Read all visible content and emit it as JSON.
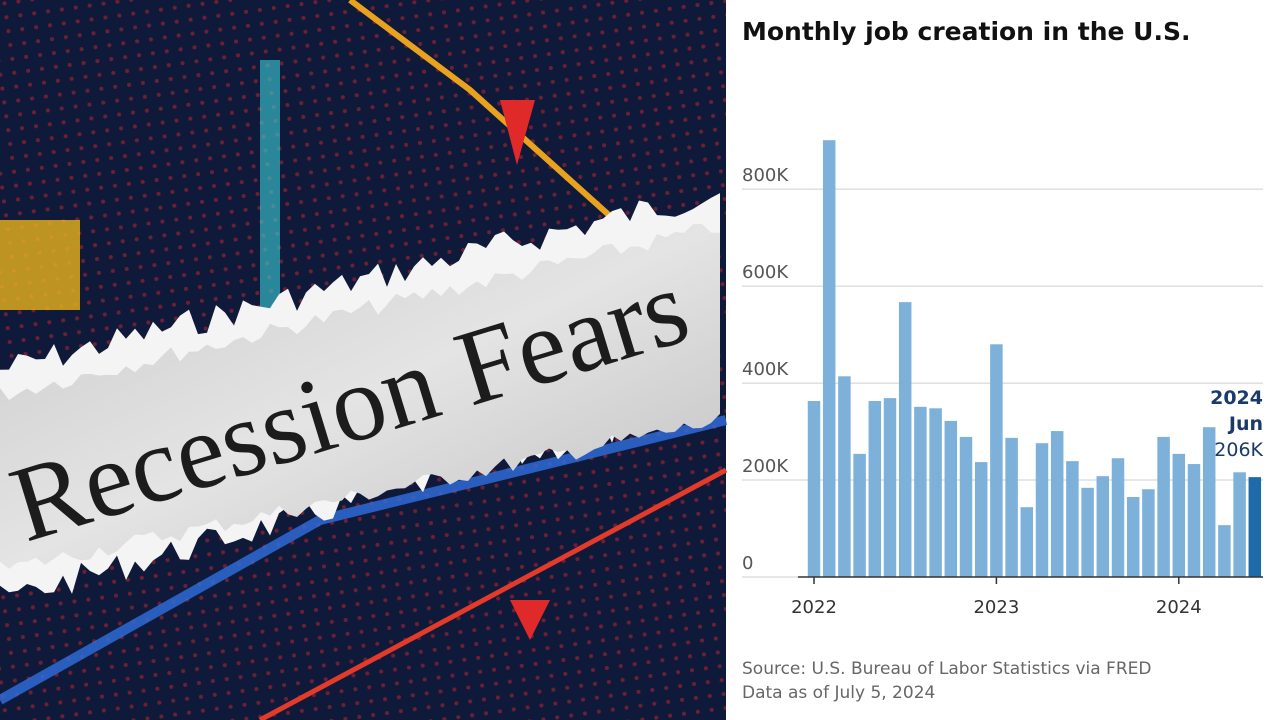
{
  "photo": {
    "headline": "Recession Fears"
  },
  "chart_data": {
    "type": "bar",
    "title": "Monthly job creation in the U.S.",
    "categories": [
      "2022",
      null,
      null,
      null,
      null,
      null,
      null,
      null,
      null,
      null,
      null,
      null,
      "2023",
      null,
      null,
      null,
      null,
      null,
      null,
      null,
      null,
      null,
      null,
      null,
      "2024",
      null,
      null,
      null,
      null,
      null
    ],
    "values": [
      363,
      901,
      414,
      254,
      363,
      369,
      567,
      351,
      348,
      322,
      289,
      237,
      480,
      287,
      144,
      276,
      301,
      239,
      184,
      208,
      245,
      165,
      181,
      289,
      254,
      233,
      309,
      107,
      216,
      206
    ],
    "value_labels": [
      null,
      null,
      null,
      null,
      null,
      null,
      null,
      null,
      null,
      null,
      null,
      null,
      null,
      null,
      null,
      null,
      null,
      null,
      null,
      null,
      null,
      null,
      null,
      null,
      null,
      null,
      null,
      null,
      null,
      "206K"
    ],
    "colors": [
      "#7db1da",
      "#7db1da",
      "#7db1da",
      "#7db1da",
      "#7db1da",
      "#7db1da",
      "#7db1da",
      "#7db1da",
      "#7db1da",
      "#7db1da",
      "#7db1da",
      "#7db1da",
      "#7db1da",
      "#7db1da",
      "#7db1da",
      "#7db1da",
      "#7db1da",
      "#7db1da",
      "#7db1da",
      "#7db1da",
      "#7db1da",
      "#7db1da",
      "#7db1da",
      "#7db1da",
      "#7db1da",
      "#7db1da",
      "#7db1da",
      "#7db1da",
      "#7db1da",
      "#1f6aa8"
    ],
    "annotation": [
      "2024",
      "Jun"
    ],
    "ylim": [
      0,
      920
    ],
    "yticks": [
      0,
      {
        "value": 200,
        "label": "200K"
      },
      {
        "value": 400,
        "label": "400K"
      },
      {
        "value": 600,
        "label": "600K"
      },
      {
        "value": 800,
        "label": "800K"
      }
    ],
    "grid": true,
    "source": [
      "Source: U.S. Bureau of Labor Statistics via FRED",
      "Data as of July 5, 2024"
    ]
  }
}
